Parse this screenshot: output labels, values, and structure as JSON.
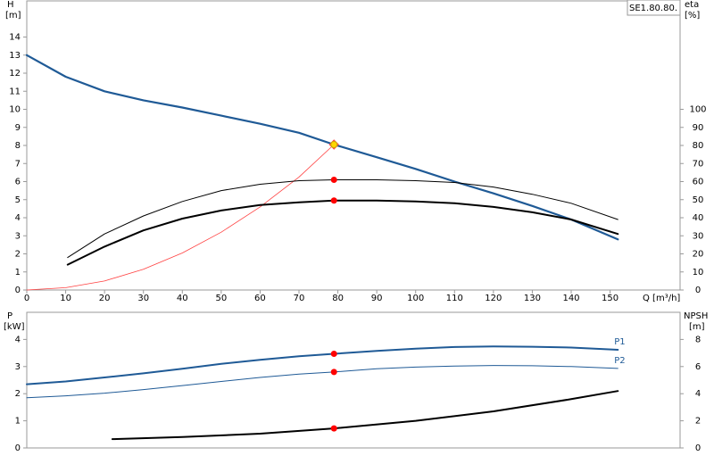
{
  "chart_data": [
    {
      "type": "line",
      "label": "SE1.80.80.",
      "y_label": "H",
      "y_unit": "[m]",
      "y2_label": "eta",
      "y2_unit": "[%]",
      "x_label": "Q [m³/h]",
      "xlim": [
        0,
        168
      ],
      "xticks": [
        0,
        10,
        20,
        30,
        40,
        50,
        60,
        70,
        80,
        90,
        100,
        110,
        120,
        130,
        140,
        150
      ],
      "ylim": [
        0,
        16
      ],
      "yticks": [
        0,
        1,
        2,
        3,
        4,
        5,
        6,
        7,
        8,
        9,
        10,
        11,
        12,
        13,
        14
      ],
      "y2lim": [
        0,
        160
      ],
      "y2ticks": [
        0,
        10,
        20,
        30,
        40,
        50,
        60,
        70,
        80,
        90,
        100
      ],
      "duty_x": 79,
      "series": [
        {
          "color": "#1f5a96",
          "width": 2.2,
          "marker_color": "#ffd700",
          "x": [
            0,
            10,
            20,
            30,
            40,
            50,
            60,
            70,
            79,
            90,
            100,
            110,
            120,
            130,
            140,
            152
          ],
          "values": [
            13,
            11.8,
            11.0,
            10.5,
            10.1,
            9.65,
            9.2,
            8.7,
            8.05,
            7.35,
            6.7,
            6.0,
            5.35,
            4.65,
            3.9,
            2.8
          ]
        },
        {
          "color": "#ff4040",
          "width": 0.8,
          "marker": "diamond",
          "x": [
            0,
            10,
            20,
            30,
            40,
            50,
            60,
            70,
            79
          ],
          "values": [
            0,
            0.13,
            0.5,
            1.15,
            2.05,
            3.2,
            4.6,
            6.25,
            8.05
          ]
        },
        {
          "color": "#000000",
          "width": 1,
          "axis": "y2",
          "marker_color": "#ff0000",
          "x": [
            10.5,
            20,
            30,
            40,
            50,
            60,
            70,
            79,
            90,
            100,
            110,
            120,
            130,
            140,
            152
          ],
          "values": [
            18,
            31,
            41,
            49,
            55,
            58.5,
            60.5,
            61,
            61,
            60.5,
            59.5,
            57,
            53,
            48,
            39
          ]
        },
        {
          "color": "#000000",
          "width": 2,
          "axis": "y2",
          "marker_color": "#ff0000",
          "x": [
            10.5,
            20,
            30,
            40,
            50,
            60,
            70,
            79,
            90,
            100,
            110,
            120,
            130,
            140,
            152
          ],
          "values": [
            14,
            24,
            33,
            39.5,
            44,
            47,
            48.5,
            49.5,
            49.5,
            49,
            48,
            46,
            43,
            39,
            31
          ]
        }
      ]
    },
    {
      "type": "line",
      "y_label": "P",
      "y_unit": "[kW]",
      "y2_label": "NPSH",
      "y2_unit": "[m]",
      "xlim": [
        0,
        168
      ],
      "ylim": [
        0,
        5
      ],
      "yticks": [
        0,
        1,
        2,
        3,
        4
      ],
      "y2lim": [
        0,
        10
      ],
      "y2ticks": [
        0,
        2,
        4,
        6,
        8
      ],
      "duty_x": 79,
      "series": [
        {
          "name": "P1",
          "color": "#1f5a96",
          "width": 2,
          "marker_color": "#ff0000",
          "x": [
            0,
            10,
            20,
            30,
            40,
            50,
            60,
            70,
            79,
            90,
            100,
            110,
            120,
            130,
            140,
            152
          ],
          "values": [
            2.35,
            2.45,
            2.6,
            2.75,
            2.92,
            3.1,
            3.25,
            3.38,
            3.47,
            3.58,
            3.66,
            3.72,
            3.74,
            3.73,
            3.7,
            3.62
          ]
        },
        {
          "name": "P2",
          "color": "#1f5a96",
          "width": 1,
          "marker_color": "#ff0000",
          "x": [
            0,
            10,
            20,
            30,
            40,
            50,
            60,
            70,
            79,
            90,
            100,
            110,
            120,
            130,
            140,
            152
          ],
          "values": [
            1.85,
            1.92,
            2.02,
            2.15,
            2.3,
            2.45,
            2.6,
            2.72,
            2.8,
            2.92,
            2.98,
            3.02,
            3.04,
            3.03,
            3.0,
            2.93
          ]
        },
        {
          "color": "#000000",
          "width": 2,
          "axis": "y2",
          "marker_color": "#ff0000",
          "x": [
            22,
            40,
            60,
            79,
            100,
            120,
            140,
            152
          ],
          "values": [
            0.65,
            0.8,
            1.05,
            1.44,
            2.0,
            2.7,
            3.6,
            4.2
          ]
        }
      ]
    }
  ]
}
